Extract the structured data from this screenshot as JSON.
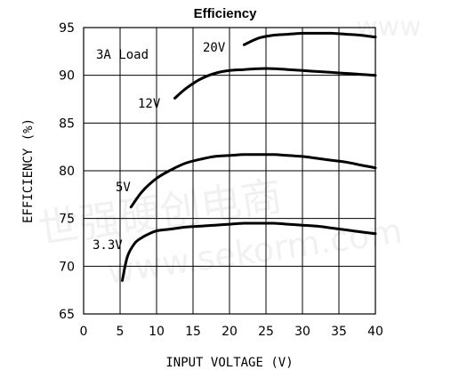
{
  "chart_data": {
    "type": "line",
    "title": "Efficiency",
    "xlabel": "INPUT VOLTAGE (V)",
    "ylabel": "EFFICIENCY (%)",
    "xlim": [
      0,
      40
    ],
    "ylim": [
      65,
      95
    ],
    "x_ticks": [
      "0",
      "5",
      "10",
      "15",
      "20",
      "25",
      "30",
      "35",
      "40"
    ],
    "y_ticks": [
      "65",
      "70",
      "75",
      "80",
      "85",
      "90",
      "95"
    ],
    "grid": true,
    "annotation": "3A Load",
    "series": [
      {
        "name": "20V",
        "x": [
          22,
          24,
          26,
          28,
          30,
          32,
          34,
          36,
          38,
          40
        ],
        "y": [
          93.2,
          93.9,
          94.2,
          94.3,
          94.4,
          94.4,
          94.4,
          94.3,
          94.2,
          94.0
        ]
      },
      {
        "name": "12V",
        "x": [
          12.5,
          14,
          16,
          18,
          20,
          22,
          24,
          26,
          28,
          30,
          32,
          34,
          36,
          38,
          40
        ],
        "y": [
          87.6,
          88.6,
          89.6,
          90.2,
          90.5,
          90.6,
          90.7,
          90.7,
          90.6,
          90.5,
          90.4,
          90.3,
          90.2,
          90.1,
          90.0
        ]
      },
      {
        "name": "5V",
        "x": [
          6.5,
          8,
          10,
          12,
          14,
          16,
          18,
          20,
          22,
          24,
          26,
          28,
          30,
          32,
          34,
          36,
          38,
          40
        ],
        "y": [
          76.2,
          77.8,
          79.2,
          80.1,
          80.8,
          81.2,
          81.5,
          81.6,
          81.7,
          81.7,
          81.7,
          81.6,
          81.5,
          81.3,
          81.1,
          80.9,
          80.6,
          80.3
        ]
      },
      {
        "name": "3.3V",
        "x": [
          5.3,
          6,
          7,
          8,
          9,
          10,
          12,
          14,
          16,
          18,
          20,
          22,
          24,
          26,
          28,
          30,
          32,
          34,
          36,
          38,
          40
        ],
        "y": [
          68.5,
          71.0,
          72.4,
          73.0,
          73.4,
          73.7,
          73.9,
          74.1,
          74.2,
          74.3,
          74.4,
          74.5,
          74.5,
          74.5,
          74.4,
          74.3,
          74.2,
          74.0,
          73.8,
          73.6,
          73.4
        ]
      }
    ],
    "series_labels": [
      "20V",
      "12V",
      "5V",
      "3.3V"
    ]
  }
}
